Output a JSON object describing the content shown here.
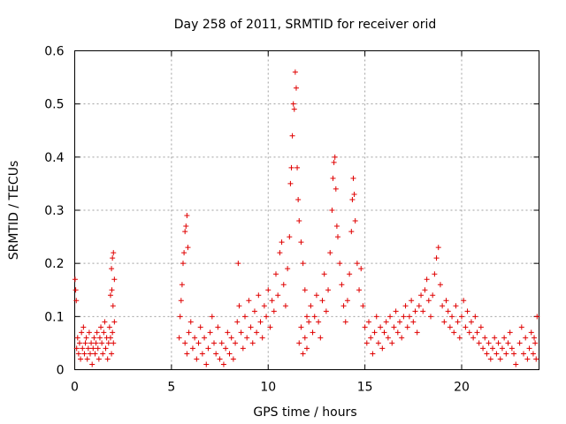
{
  "chart_data": {
    "type": "scatter",
    "title": "Day 258 of 2011, SRMTID for receiver orid",
    "xlabel": "GPS time / hours",
    "ylabel": "SRMTID / TECUs",
    "xlim": [
      0,
      24
    ],
    "ylim": [
      0,
      0.6
    ],
    "xticks": [
      0,
      5,
      10,
      15,
      20
    ],
    "yticks": [
      0,
      0.1,
      0.2,
      0.3,
      0.4,
      0.5,
      0.6
    ],
    "xtick_labels": [
      "0",
      "5",
      "10",
      "15",
      "20"
    ],
    "ytick_labels": [
      "0",
      "0.1",
      "0.2",
      "0.3",
      "0.4",
      "0.5",
      "0.6"
    ],
    "grid": true,
    "marker": "+",
    "color": "#e00000",
    "series": [
      {
        "name": "SRMTID",
        "points": [
          [
            0.02,
            0.17
          ],
          [
            0.05,
            0.15
          ],
          [
            0.08,
            0.13
          ],
          [
            0.1,
            0.04
          ],
          [
            0.15,
            0.06
          ],
          [
            0.2,
            0.03
          ],
          [
            0.25,
            0.05
          ],
          [
            0.3,
            0.02
          ],
          [
            0.35,
            0.07
          ],
          [
            0.4,
            0.04
          ],
          [
            0.45,
            0.08
          ],
          [
            0.5,
            0.03
          ],
          [
            0.55,
            0.05
          ],
          [
            0.6,
            0.06
          ],
          [
            0.65,
            0.02
          ],
          [
            0.7,
            0.04
          ],
          [
            0.75,
            0.07
          ],
          [
            0.8,
            0.03
          ],
          [
            0.85,
            0.05
          ],
          [
            0.9,
            0.01
          ],
          [
            0.95,
            0.04
          ],
          [
            1.0,
            0.06
          ],
          [
            1.05,
            0.03
          ],
          [
            1.1,
            0.05
          ],
          [
            1.15,
            0.07
          ],
          [
            1.2,
            0.04
          ],
          [
            1.25,
            0.02
          ],
          [
            1.3,
            0.06
          ],
          [
            1.35,
            0.08
          ],
          [
            1.4,
            0.05
          ],
          [
            1.45,
            0.03
          ],
          [
            1.5,
            0.07
          ],
          [
            1.55,
            0.09
          ],
          [
            1.6,
            0.04
          ],
          [
            1.65,
            0.06
          ],
          [
            1.7,
            0.02
          ],
          [
            1.75,
            0.05
          ],
          [
            1.8,
            0.08
          ],
          [
            1.85,
            0.06
          ],
          [
            1.9,
            0.03
          ],
          [
            1.95,
            0.07
          ],
          [
            2.0,
            0.05
          ],
          [
            1.85,
            0.14
          ],
          [
            1.9,
            0.19
          ],
          [
            1.95,
            0.21
          ],
          [
            2.0,
            0.22
          ],
          [
            2.05,
            0.17
          ],
          [
            2.05,
            0.09
          ],
          [
            1.98,
            0.12
          ],
          [
            1.92,
            0.15
          ],
          [
            5.4,
            0.06
          ],
          [
            5.45,
            0.1
          ],
          [
            5.5,
            0.13
          ],
          [
            5.55,
            0.16
          ],
          [
            5.6,
            0.2
          ],
          [
            5.65,
            0.22
          ],
          [
            5.7,
            0.26
          ],
          [
            5.75,
            0.27
          ],
          [
            5.8,
            0.29
          ],
          [
            5.85,
            0.23
          ],
          [
            5.7,
            0.05
          ],
          [
            5.8,
            0.03
          ],
          [
            5.9,
            0.07
          ],
          [
            6.0,
            0.09
          ],
          [
            6.1,
            0.04
          ],
          [
            6.2,
            0.06
          ],
          [
            6.3,
            0.02
          ],
          [
            6.4,
            0.05
          ],
          [
            6.5,
            0.08
          ],
          [
            6.6,
            0.03
          ],
          [
            6.7,
            0.06
          ],
          [
            6.8,
            0.01
          ],
          [
            6.9,
            0.04
          ],
          [
            7.0,
            0.07
          ],
          [
            7.1,
            0.1
          ],
          [
            7.2,
            0.05
          ],
          [
            7.3,
            0.03
          ],
          [
            7.4,
            0.08
          ],
          [
            7.5,
            0.02
          ],
          [
            7.6,
            0.05
          ],
          [
            7.7,
            0.01
          ],
          [
            7.8,
            0.04
          ],
          [
            7.9,
            0.07
          ],
          [
            8.0,
            0.03
          ],
          [
            8.1,
            0.06
          ],
          [
            8.2,
            0.02
          ],
          [
            8.3,
            0.05
          ],
          [
            8.4,
            0.09
          ],
          [
            8.45,
            0.2
          ],
          [
            8.5,
            0.12
          ],
          [
            8.6,
            0.07
          ],
          [
            8.7,
            0.04
          ],
          [
            8.8,
            0.1
          ],
          [
            8.9,
            0.06
          ],
          [
            9.0,
            0.13
          ],
          [
            9.1,
            0.08
          ],
          [
            9.2,
            0.05
          ],
          [
            9.3,
            0.11
          ],
          [
            9.4,
            0.07
          ],
          [
            9.5,
            0.14
          ],
          [
            9.6,
            0.09
          ],
          [
            9.7,
            0.06
          ],
          [
            9.8,
            0.12
          ],
          [
            9.9,
            0.1
          ],
          [
            10.0,
            0.15
          ],
          [
            10.1,
            0.08
          ],
          [
            10.2,
            0.13
          ],
          [
            10.3,
            0.11
          ],
          [
            10.4,
            0.18
          ],
          [
            10.5,
            0.14
          ],
          [
            10.6,
            0.22
          ],
          [
            10.7,
            0.24
          ],
          [
            10.8,
            0.16
          ],
          [
            10.9,
            0.12
          ],
          [
            11.0,
            0.19
          ],
          [
            11.1,
            0.25
          ],
          [
            11.15,
            0.35
          ],
          [
            11.2,
            0.38
          ],
          [
            11.25,
            0.44
          ],
          [
            11.3,
            0.5
          ],
          [
            11.35,
            0.49
          ],
          [
            11.4,
            0.56
          ],
          [
            11.45,
            0.53
          ],
          [
            11.5,
            0.38
          ],
          [
            11.55,
            0.32
          ],
          [
            11.6,
            0.28
          ],
          [
            11.7,
            0.24
          ],
          [
            11.8,
            0.2
          ],
          [
            11.9,
            0.15
          ],
          [
            12.0,
            0.1
          ],
          [
            11.6,
            0.05
          ],
          [
            11.7,
            0.08
          ],
          [
            11.8,
            0.03
          ],
          [
            11.9,
            0.06
          ],
          [
            12.0,
            0.04
          ],
          [
            12.1,
            0.09
          ],
          [
            12.2,
            0.12
          ],
          [
            12.3,
            0.07
          ],
          [
            12.4,
            0.1
          ],
          [
            12.5,
            0.14
          ],
          [
            12.6,
            0.09
          ],
          [
            12.7,
            0.06
          ],
          [
            12.8,
            0.13
          ],
          [
            12.9,
            0.18
          ],
          [
            13.0,
            0.11
          ],
          [
            13.1,
            0.15
          ],
          [
            13.2,
            0.22
          ],
          [
            13.3,
            0.3
          ],
          [
            13.35,
            0.36
          ],
          [
            13.4,
            0.39
          ],
          [
            13.45,
            0.4
          ],
          [
            13.5,
            0.34
          ],
          [
            13.55,
            0.27
          ],
          [
            13.6,
            0.25
          ],
          [
            13.7,
            0.2
          ],
          [
            13.8,
            0.16
          ],
          [
            13.9,
            0.12
          ],
          [
            14.0,
            0.09
          ],
          [
            14.1,
            0.13
          ],
          [
            14.2,
            0.18
          ],
          [
            14.3,
            0.26
          ],
          [
            14.35,
            0.32
          ],
          [
            14.4,
            0.36
          ],
          [
            14.45,
            0.33
          ],
          [
            14.5,
            0.28
          ],
          [
            14.6,
            0.2
          ],
          [
            14.7,
            0.15
          ],
          [
            14.8,
            0.19
          ],
          [
            14.9,
            0.12
          ],
          [
            15.0,
            0.08
          ],
          [
            15.1,
            0.05
          ],
          [
            15.2,
            0.09
          ],
          [
            15.3,
            0.06
          ],
          [
            15.4,
            0.03
          ],
          [
            15.5,
            0.07
          ],
          [
            15.6,
            0.1
          ],
          [
            15.7,
            0.05
          ],
          [
            15.8,
            0.08
          ],
          [
            15.9,
            0.04
          ],
          [
            16.0,
            0.07
          ],
          [
            16.1,
            0.09
          ],
          [
            16.2,
            0.06
          ],
          [
            16.3,
            0.1
          ],
          [
            16.4,
            0.05
          ],
          [
            16.5,
            0.08
          ],
          [
            16.6,
            0.11
          ],
          [
            16.7,
            0.07
          ],
          [
            16.8,
            0.09
          ],
          [
            16.9,
            0.06
          ],
          [
            17.0,
            0.1
          ],
          [
            17.1,
            0.12
          ],
          [
            17.2,
            0.08
          ],
          [
            17.3,
            0.1
          ],
          [
            17.4,
            0.13
          ],
          [
            17.5,
            0.09
          ],
          [
            17.6,
            0.11
          ],
          [
            17.7,
            0.07
          ],
          [
            17.8,
            0.12
          ],
          [
            17.9,
            0.14
          ],
          [
            18.0,
            0.11
          ],
          [
            18.1,
            0.15
          ],
          [
            18.2,
            0.17
          ],
          [
            18.3,
            0.13
          ],
          [
            18.4,
            0.1
          ],
          [
            18.5,
            0.14
          ],
          [
            18.6,
            0.18
          ],
          [
            18.7,
            0.21
          ],
          [
            18.8,
            0.23
          ],
          [
            18.9,
            0.16
          ],
          [
            19.0,
            0.12
          ],
          [
            19.1,
            0.09
          ],
          [
            19.2,
            0.13
          ],
          [
            19.3,
            0.11
          ],
          [
            19.4,
            0.08
          ],
          [
            19.5,
            0.1
          ],
          [
            19.6,
            0.07
          ],
          [
            19.7,
            0.12
          ],
          [
            19.8,
            0.09
          ],
          [
            19.9,
            0.06
          ],
          [
            20.0,
            0.1
          ],
          [
            20.1,
            0.13
          ],
          [
            20.2,
            0.08
          ],
          [
            20.3,
            0.11
          ],
          [
            20.4,
            0.07
          ],
          [
            20.5,
            0.09
          ],
          [
            20.6,
            0.06
          ],
          [
            20.7,
            0.1
          ],
          [
            20.8,
            0.07
          ],
          [
            20.9,
            0.05
          ],
          [
            21.0,
            0.08
          ],
          [
            21.1,
            0.04
          ],
          [
            21.2,
            0.06
          ],
          [
            21.3,
            0.03
          ],
          [
            21.4,
            0.05
          ],
          [
            21.5,
            0.02
          ],
          [
            21.6,
            0.04
          ],
          [
            21.7,
            0.06
          ],
          [
            21.8,
            0.03
          ],
          [
            21.9,
            0.05
          ],
          [
            22.0,
            0.02
          ],
          [
            22.1,
            0.04
          ],
          [
            22.2,
            0.06
          ],
          [
            22.3,
            0.03
          ],
          [
            22.4,
            0.05
          ],
          [
            22.5,
            0.07
          ],
          [
            22.6,
            0.04
          ],
          [
            22.7,
            0.03
          ],
          [
            22.8,
            0.01
          ],
          [
            23.0,
            0.05
          ],
          [
            23.1,
            0.08
          ],
          [
            23.2,
            0.03
          ],
          [
            23.3,
            0.06
          ],
          [
            23.4,
            0.02
          ],
          [
            23.5,
            0.04
          ],
          [
            23.6,
            0.07
          ],
          [
            23.7,
            0.03
          ],
          [
            23.8,
            0.05
          ],
          [
            23.9,
            0.1
          ],
          [
            23.85,
            0.02
          ],
          [
            23.75,
            0.06
          ]
        ]
      }
    ]
  }
}
